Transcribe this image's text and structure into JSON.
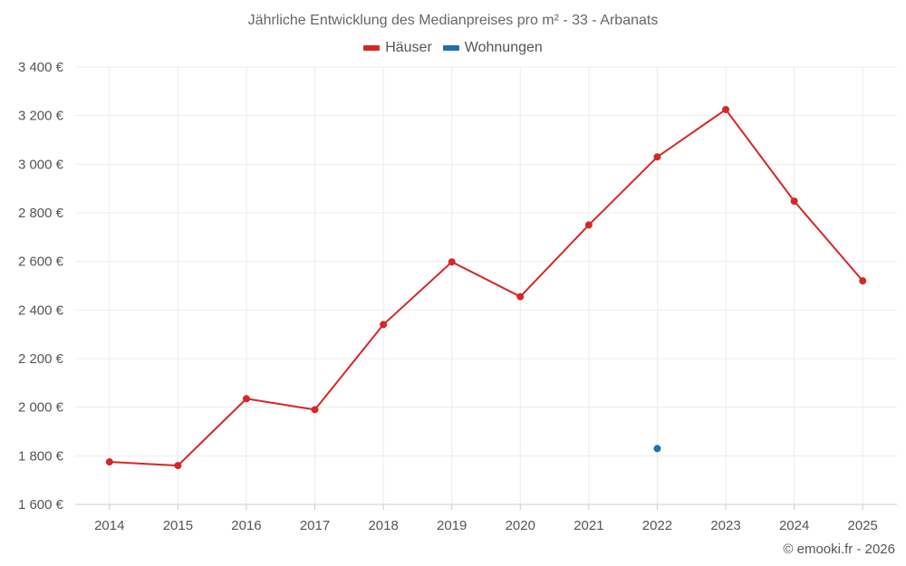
{
  "chart_data": {
    "type": "line",
    "title": "Jährliche Entwicklung des Medianpreises pro m² - 33 - Arbanats",
    "categories": [
      "2014",
      "2015",
      "2016",
      "2017",
      "2018",
      "2019",
      "2020",
      "2021",
      "2022",
      "2023",
      "2024",
      "2025"
    ],
    "series": [
      {
        "name": "Häuser",
        "color": "#d62728",
        "values": [
          1775,
          1760,
          2035,
          1990,
          2340,
          2598,
          2455,
          2750,
          3030,
          3225,
          2848,
          2520
        ]
      },
      {
        "name": "Wohnungen",
        "color": "#1f6fb2",
        "values": [
          null,
          null,
          null,
          null,
          null,
          null,
          null,
          null,
          1830,
          null,
          null,
          null
        ]
      }
    ],
    "ylim": [
      1600,
      3400
    ],
    "yticks": [
      1600,
      1800,
      2000,
      2200,
      2400,
      2600,
      2800,
      3000,
      3200,
      3400
    ],
    "ytick_labels": [
      "1 600 €",
      "1 800 €",
      "2 000 €",
      "2 200 €",
      "2 400 €",
      "2 600 €",
      "2 800 €",
      "3 000 €",
      "3 200 €",
      "3 400 €"
    ],
    "legend_position": "top-center",
    "grid": true
  },
  "footer": {
    "copyright": "© emooki.fr - 2026"
  }
}
